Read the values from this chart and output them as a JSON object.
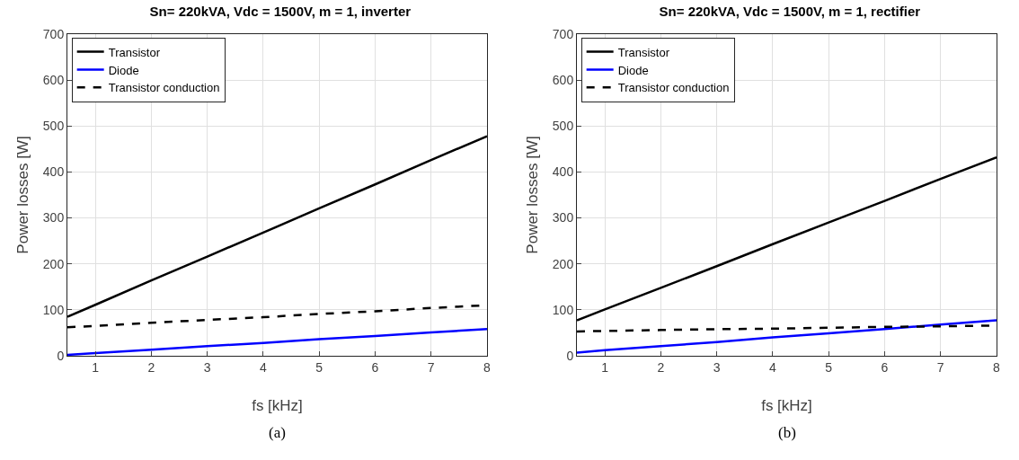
{
  "chart_data": [
    {
      "type": "line",
      "title": "Sn= 220kVA, Vdc = 1500V, m = 1, inverter",
      "xlabel": "fs [kHz]",
      "ylabel": "Power losses [W]",
      "x": [
        0.5,
        1,
        2,
        3,
        4,
        5,
        6,
        7,
        8
      ],
      "series": [
        {
          "name": "Transistor",
          "color": "#000000",
          "values": [
            85,
            111,
            164,
            216,
            268,
            321,
            373,
            426,
            478
          ],
          "line_style": "solid"
        },
        {
          "name": "Diode",
          "color": "#0000ff",
          "values": [
            2,
            6,
            13,
            21,
            28,
            36,
            43,
            51,
            58
          ],
          "line_style": "solid"
        },
        {
          "name": "Transistor conduction",
          "color": "#000000",
          "values": [
            62,
            65,
            72,
            78,
            84,
            91,
            97,
            104,
            110
          ],
          "line_style": "dashed"
        }
      ],
      "xlim": [
        0.5,
        8
      ],
      "xticks": [
        1,
        2,
        3,
        4,
        5,
        6,
        7,
        8
      ],
      "ylim": [
        0,
        700
      ],
      "yticks": [
        0,
        100,
        200,
        300,
        400,
        500,
        600,
        700
      ],
      "grid": true,
      "legend": "top left",
      "annotations": [
        "(a)"
      ]
    },
    {
      "type": "line",
      "title": "Sn= 220kVA, Vdc = 1500V, m = 1, rectifier",
      "xlabel": "fs [kHz]",
      "ylabel": "Power losses [W]",
      "x": [
        0.5,
        1,
        2,
        3,
        4,
        5,
        6,
        7,
        8
      ],
      "series": [
        {
          "name": "Transistor",
          "color": "#000000",
          "values": [
            77,
            101,
            148,
            195,
            243,
            290,
            337,
            385,
            432
          ],
          "line_style": "solid"
        },
        {
          "name": "Diode",
          "color": "#0000ff",
          "values": [
            7,
            12,
            21,
            30,
            40,
            49,
            58,
            68,
            77
          ],
          "line_style": "solid"
        },
        {
          "name": "Transistor conduction",
          "color": "#000000",
          "values": [
            53,
            54,
            56,
            58,
            59,
            61,
            63,
            64,
            66
          ],
          "line_style": "dashed"
        }
      ],
      "xlim": [
        0.5,
        8
      ],
      "xticks": [
        1,
        2,
        3,
        4,
        5,
        6,
        7,
        8
      ],
      "ylim": [
        0,
        700
      ],
      "yticks": [
        0,
        100,
        200,
        300,
        400,
        500,
        600,
        700
      ],
      "grid": true,
      "legend": "top left",
      "annotations": [
        "(b)"
      ]
    }
  ]
}
